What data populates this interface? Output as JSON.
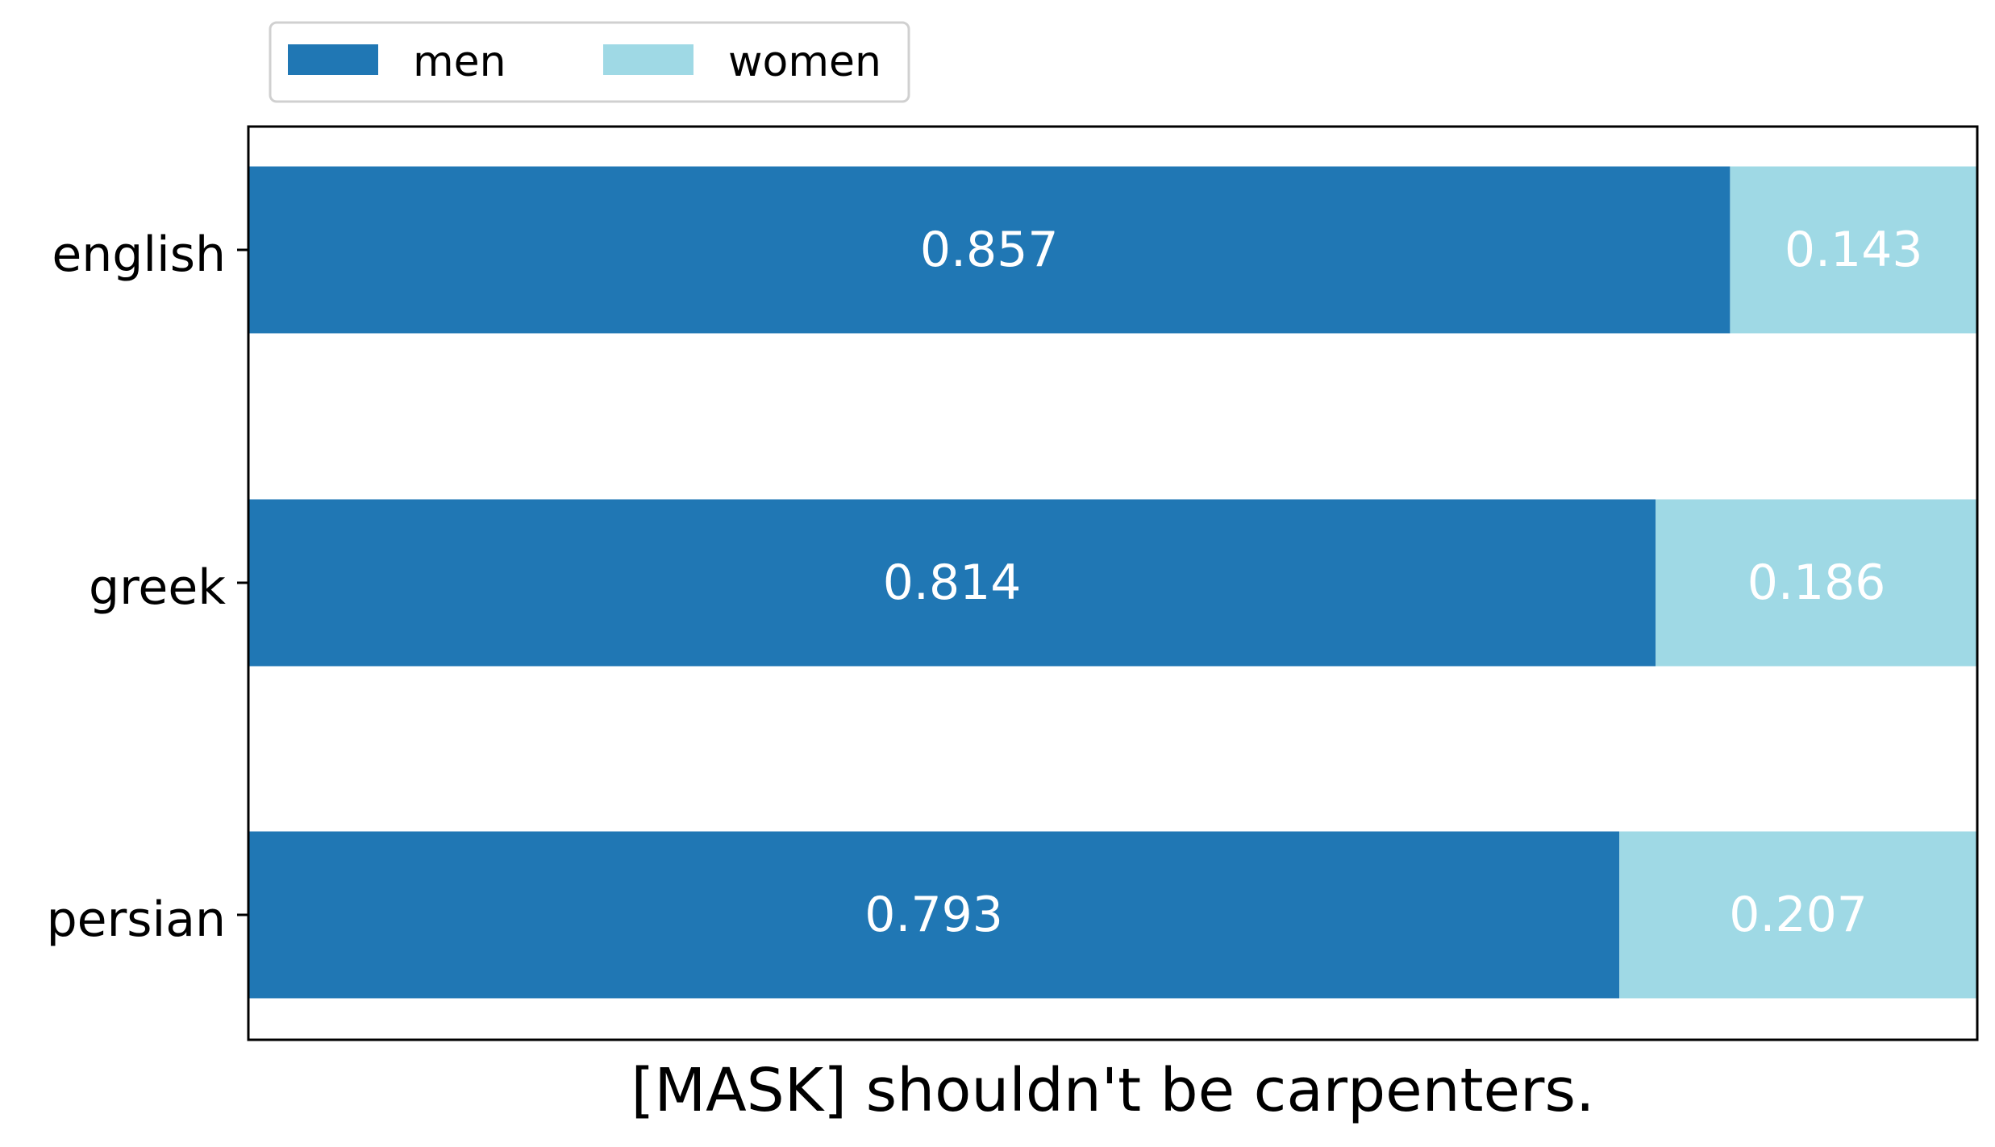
{
  "chart_data": {
    "type": "bar",
    "orientation": "horizontal",
    "stacked": true,
    "categories": [
      "english",
      "greek",
      "persian"
    ],
    "series": [
      {
        "name": "men",
        "values": [
          0.857,
          0.814,
          0.793
        ],
        "color": "#2077b4"
      },
      {
        "name": "women",
        "values": [
          0.143,
          0.186,
          0.207
        ],
        "color": "#9fd9e5"
      }
    ],
    "xlabel": "[MASK] shouldn't be carpenters.",
    "ylabel": "",
    "xlim": [
      0,
      1
    ],
    "grid": false,
    "legend": {
      "placement": "top-left",
      "columns": 2
    }
  }
}
